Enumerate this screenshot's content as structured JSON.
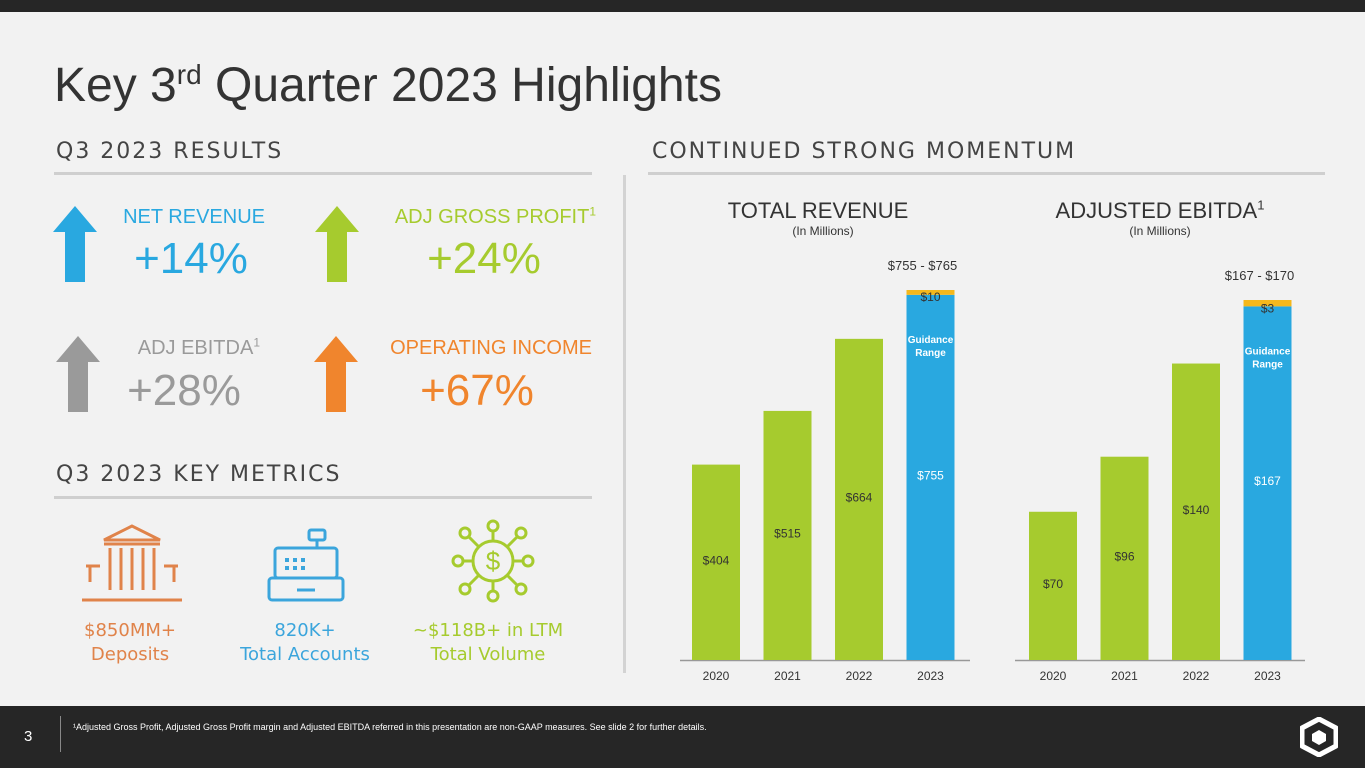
{
  "title": {
    "prefix": "Key 3",
    "sup": "rd",
    "suffix": " Quarter 2023 Highlights"
  },
  "sections": {
    "results": "Q3 2023 RESULTS",
    "momentum": "CONTINUED STRONG MOMENTUM",
    "metrics": "Q3 2023 KEY METRICS"
  },
  "kpis": [
    {
      "label": "NET REVENUE",
      "sup": "",
      "value": "+14%",
      "color": "#29a8e0",
      "arrow": "up-arrow"
    },
    {
      "label": "ADJ GROSS PROFIT",
      "sup": "1",
      "value": "+24%",
      "color": "#a6cb2e",
      "arrow": "up-arrow"
    },
    {
      "label": "ADJ EBITDA",
      "sup": "1",
      "value": "+28%",
      "color": "#9a9a9a",
      "arrow": "up-arrow"
    },
    {
      "label": "OPERATING INCOME",
      "sup": "",
      "value": "+67%",
      "color": "#f0852d",
      "arrow": "up-arrow"
    }
  ],
  "metrics": [
    {
      "icon": "bank-icon",
      "line1": "$850MM+",
      "line2": "Deposits",
      "color": "#e0834a"
    },
    {
      "icon": "cash-register-icon",
      "line1": "820K+",
      "line2": "Total Accounts",
      "color": "#3ba5dc"
    },
    {
      "icon": "dollar-network-icon",
      "line1": "~$118B+ in LTM",
      "line2": "Total Volume",
      "color": "#a6cb2e"
    }
  ],
  "colors": {
    "green": "#a6cb2e",
    "blue": "#29a8e0",
    "gold": "#f5b81c"
  },
  "chart_data": [
    {
      "type": "bar",
      "title": "TOTAL REVENUE",
      "subtitle": "(In Millions)",
      "categories": [
        "2020",
        "2021",
        "2022",
        "2023"
      ],
      "values": [
        404,
        515,
        664,
        755
      ],
      "labels": [
        "$404",
        "$515",
        "$664",
        "$755"
      ],
      "guidance": {
        "extra": 10,
        "extra_label": "$10",
        "range_label": "$755 - $765",
        "text": "Guidance Range"
      },
      "ylim": [
        0,
        765
      ],
      "legend": "none",
      "grid": false
    },
    {
      "type": "bar",
      "title": "ADJUSTED EBITDA",
      "title_sup": "1",
      "subtitle": "(In Millions)",
      "categories": [
        "2020",
        "2021",
        "2022",
        "2023"
      ],
      "values": [
        70,
        96,
        140,
        167
      ],
      "labels": [
        "$70",
        "$96",
        "$140",
        "$167"
      ],
      "guidance": {
        "extra": 3,
        "extra_label": "$3",
        "range_label": "$167 - $170",
        "text": "Guidance Range"
      },
      "ylim": [
        0,
        170
      ],
      "legend": "none",
      "grid": false
    }
  ],
  "footer": {
    "page": "3",
    "note": "¹Adjusted Gross Profit, Adjusted Gross Profit margin and Adjusted EBITDA referred in this presentation are non-GAAP measures. See slide 2 for further details."
  }
}
